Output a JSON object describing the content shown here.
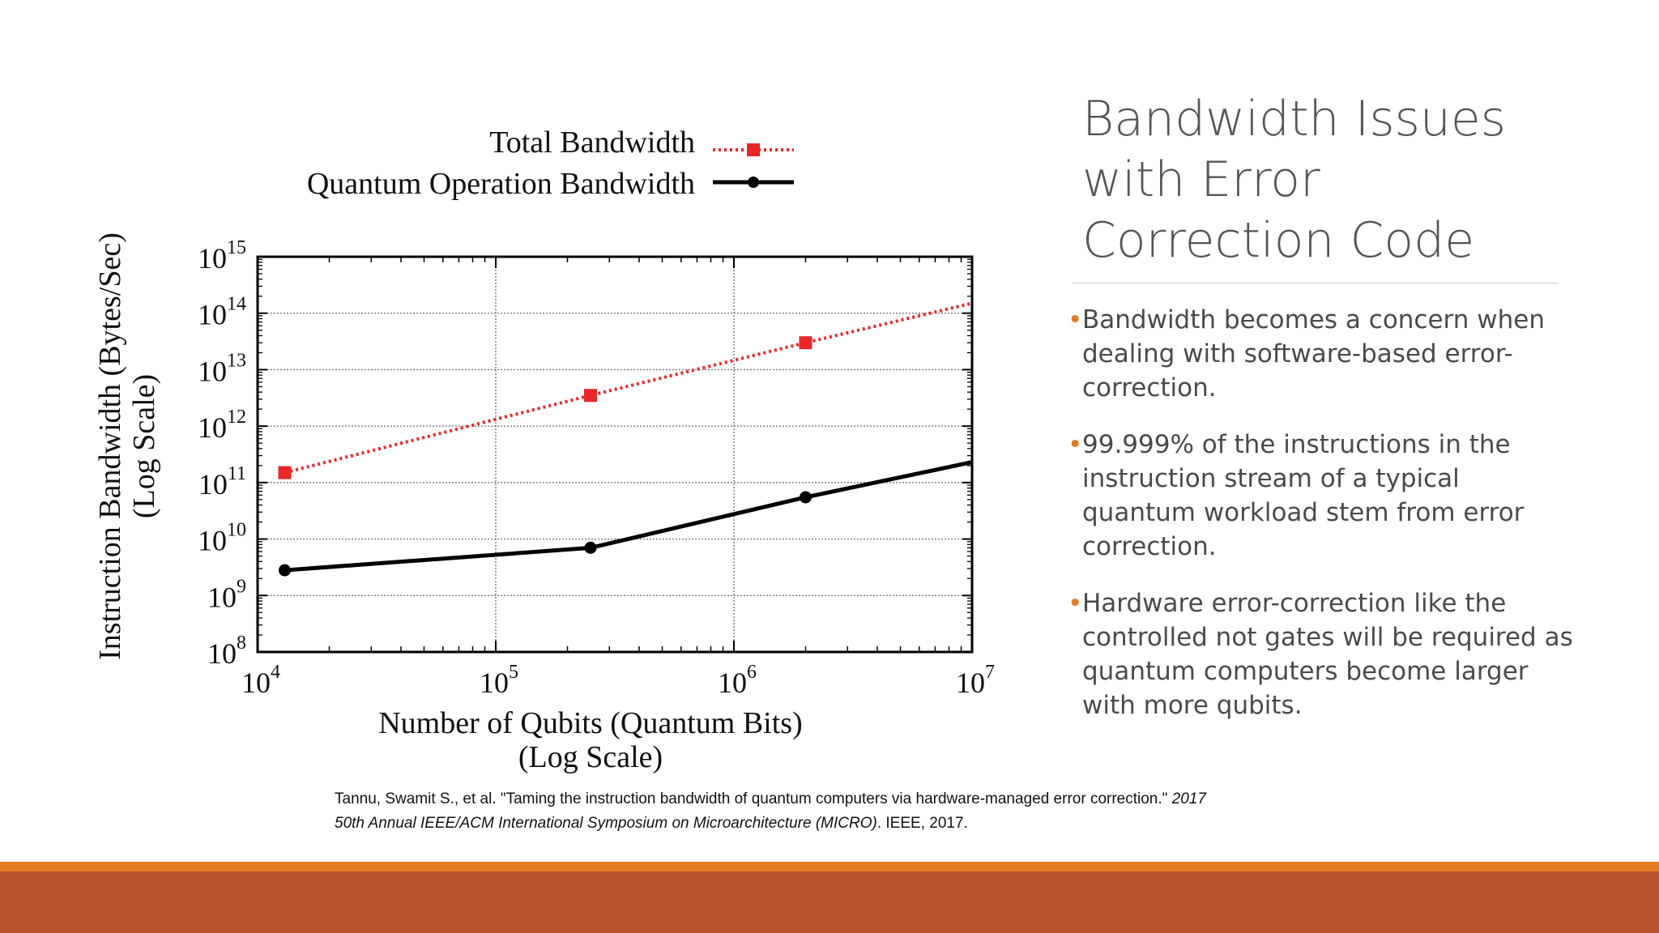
{
  "slide": {
    "title": "Bandwidth Issues with Error Correction Code",
    "bullets": [
      "Bandwidth becomes a concern when dealing with software-based error-correction.",
      "99.999% of the instructions in the instruction stream of a typical quantum workload stem from error correction.",
      "Hardware error-correction like the controlled not gates will be required as quantum computers become larger with more qubits."
    ],
    "citation_plain": "Tannu, Swamit S., et al. \"Taming the instruction bandwidth of quantum computers via hardware-managed error correction.\" ",
    "citation_italic": "2017 50th Annual IEEE/ACM International Symposium on Microarchitecture (MICRO)",
    "citation_tail": ". IEEE, 2017.",
    "colors": {
      "accent": "#e07b22",
      "footer": "#b9542a",
      "total_series": "#e8272a",
      "quantum_series": "#000000"
    }
  },
  "chart_data": {
    "type": "line",
    "xscale": "log",
    "yscale": "log",
    "xlim": [
      10000,
      10000000
    ],
    "ylim": [
      100000000,
      1000000000000000
    ],
    "x_ticks": [
      {
        "base": "10",
        "exp": "4"
      },
      {
        "base": "10",
        "exp": "5"
      },
      {
        "base": "10",
        "exp": "6"
      },
      {
        "base": "10",
        "exp": "7"
      }
    ],
    "y_ticks": [
      {
        "base": "10",
        "exp": "8"
      },
      {
        "base": "10",
        "exp": "9"
      },
      {
        "base": "10",
        "exp": "10"
      },
      {
        "base": "10",
        "exp": "11"
      },
      {
        "base": "10",
        "exp": "12"
      },
      {
        "base": "10",
        "exp": "13"
      },
      {
        "base": "10",
        "exp": "14"
      },
      {
        "base": "10",
        "exp": "15"
      }
    ],
    "xlabel_line1": "Number of Qubits (Quantum Bits)",
    "xlabel_line2": "(Log Scale)",
    "ylabel_line1": "Instruction Bandwidth (Bytes/Sec)",
    "ylabel_line2": "(Log Scale)",
    "grid": true,
    "legend_position": "top-right",
    "series": [
      {
        "name": "Total Bandwidth",
        "style": "dotted-red-squares",
        "points": [
          [
            13000,
            150000000000
          ],
          [
            250000,
            3500000000000
          ],
          [
            2000000,
            30000000000000
          ]
        ],
        "line_end": [
          10000000,
          150000000000000
        ]
      },
      {
        "name": "Quantum Operation Bandwidth",
        "style": "solid-black-circles",
        "points": [
          [
            13000,
            2800000000
          ],
          [
            250000,
            7000000000
          ],
          [
            2000000,
            55000000000
          ]
        ],
        "line_end": [
          10000000,
          230000000000
        ]
      }
    ]
  }
}
